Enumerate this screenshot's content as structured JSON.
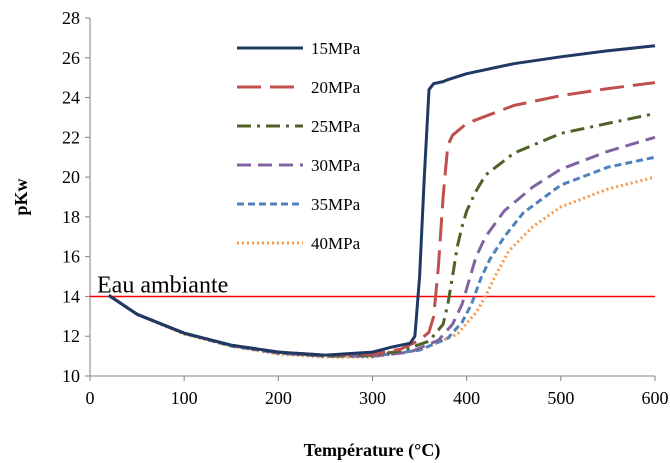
{
  "chart_data": {
    "type": "line",
    "xlabel": "Température (°C)",
    "ylabel": "pKw",
    "xlim": [
      0,
      600
    ],
    "ylim": [
      10,
      28
    ],
    "xticks": [
      0,
      100,
      200,
      300,
      400,
      500,
      600
    ],
    "yticks": [
      10,
      12,
      14,
      16,
      18,
      20,
      22,
      24,
      26,
      28
    ],
    "grid": false,
    "legend_position": "upper-left inside",
    "series": [
      {
        "name": "15MPa",
        "color": "#1F3864",
        "dash": "solid",
        "x": [
          20,
          50,
          100,
          150,
          200,
          250,
          300,
          320,
          330,
          340,
          345,
          350,
          355,
          360,
          365,
          375,
          380,
          400,
          450,
          500,
          550,
          600
        ],
        "y": [
          14.05,
          13.1,
          12.15,
          11.55,
          11.2,
          11.05,
          11.2,
          11.45,
          11.55,
          11.65,
          12.0,
          15.0,
          20.0,
          24.4,
          24.7,
          24.8,
          24.9,
          25.2,
          25.7,
          26.05,
          26.35,
          26.6
        ]
      },
      {
        "name": "20MPa",
        "color": "#C0504D",
        "dash": "24,9",
        "x": [
          20,
          50,
          100,
          150,
          200,
          250,
          300,
          330,
          350,
          360,
          365,
          370,
          375,
          380,
          385,
          400,
          450,
          500,
          550,
          600
        ],
        "y": [
          14.05,
          13.1,
          12.15,
          11.55,
          11.2,
          11.05,
          11.1,
          11.35,
          11.8,
          12.2,
          13.0,
          15.5,
          19.0,
          21.6,
          22.1,
          22.7,
          23.6,
          24.1,
          24.45,
          24.75
        ]
      },
      {
        "name": "25MPa",
        "color": "#4F6228",
        "dash": "14,6,3,6",
        "x": [
          20,
          50,
          100,
          150,
          200,
          250,
          300,
          330,
          360,
          375,
          380,
          385,
          390,
          395,
          400,
          410,
          420,
          450,
          500,
          550,
          600
        ],
        "y": [
          14.05,
          13.1,
          12.15,
          11.55,
          11.2,
          11.0,
          11.05,
          11.25,
          11.75,
          12.6,
          13.6,
          15.0,
          16.5,
          17.5,
          18.3,
          19.3,
          20.1,
          21.2,
          22.2,
          22.7,
          23.2
        ]
      },
      {
        "name": "30MPa",
        "color": "#8064A2",
        "dash": "14,7",
        "x": [
          20,
          50,
          100,
          150,
          200,
          250,
          300,
          340,
          370,
          385,
          395,
          400,
          405,
          410,
          420,
          440,
          470,
          500,
          550,
          600
        ],
        "y": [
          14.05,
          13.1,
          12.15,
          11.55,
          11.15,
          11.0,
          11.0,
          11.2,
          11.8,
          12.6,
          13.6,
          14.4,
          15.2,
          16.0,
          17.0,
          18.3,
          19.5,
          20.4,
          21.3,
          22.0
        ]
      },
      {
        "name": "35MPa",
        "color": "#4F81BD",
        "dash": "7,4",
        "x": [
          20,
          50,
          100,
          150,
          200,
          250,
          300,
          350,
          380,
          395,
          405,
          415,
          425,
          440,
          460,
          500,
          550,
          600
        ],
        "y": [
          14.05,
          13.1,
          12.15,
          11.5,
          11.15,
          11.0,
          11.0,
          11.3,
          11.9,
          12.7,
          13.6,
          14.9,
          15.9,
          17.0,
          18.2,
          19.6,
          20.5,
          21.0
        ]
      },
      {
        "name": "40MPa",
        "color": "#F79646",
        "dash": "2,3",
        "x": [
          20,
          50,
          100,
          150,
          200,
          250,
          300,
          350,
          390,
          410,
          420,
          430,
          445,
          470,
          500,
          550,
          600
        ],
        "y": [
          14.05,
          13.1,
          12.1,
          11.5,
          11.1,
          10.95,
          10.95,
          11.3,
          12.1,
          13.2,
          14.0,
          15.0,
          16.3,
          17.5,
          18.5,
          19.4,
          20.0
        ]
      }
    ],
    "reference_line": {
      "label": "Eau ambiante",
      "y": 14,
      "color": "#FF0000"
    }
  }
}
